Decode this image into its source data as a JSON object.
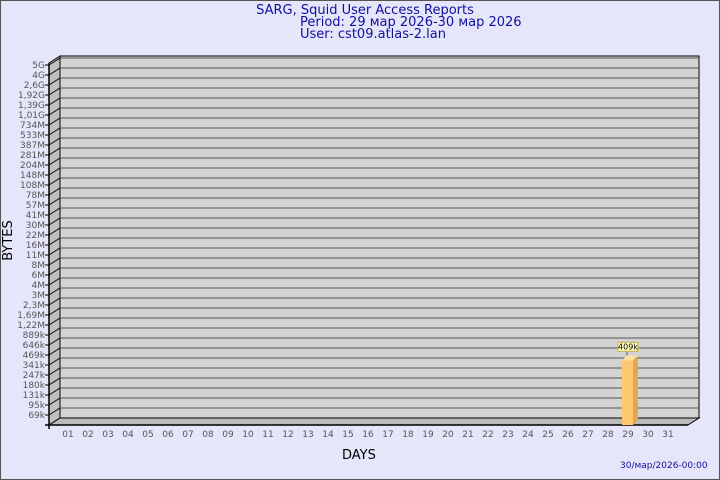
{
  "header": {
    "title": "SARG, Squid User Access Reports",
    "period": "Period: 29 мар 2026-30 мар 2026",
    "user": "User: cst09.atlas-2.lan"
  },
  "footer": {
    "timestamp": "30/мар/2026-00:00"
  },
  "chart_data": {
    "type": "bar",
    "title": "SARG, Squid User Access Reports",
    "xlabel": "DAYS",
    "ylabel": "BYTES",
    "y_scale": "log",
    "y_tick_labels": [
      "5G",
      "4G",
      "2,6G",
      "1,92G",
      "1,39G",
      "1,01G",
      "734M",
      "533M",
      "387M",
      "281M",
      "204M",
      "148M",
      "108M",
      "78M",
      "57M",
      "41M",
      "30M",
      "22M",
      "16M",
      "11M",
      "8M",
      "6M",
      "4M",
      "3M",
      "2,3M",
      "1,69M",
      "1,22M",
      "889k",
      "646k",
      "469k",
      "341k",
      "247k",
      "180k",
      "131k",
      "95k",
      "69k"
    ],
    "categories": [
      "01",
      "02",
      "03",
      "04",
      "05",
      "06",
      "07",
      "08",
      "09",
      "10",
      "11",
      "12",
      "13",
      "14",
      "15",
      "16",
      "17",
      "18",
      "19",
      "20",
      "21",
      "22",
      "23",
      "24",
      "25",
      "26",
      "27",
      "28",
      "29",
      "30",
      "31"
    ],
    "bars": [
      {
        "day": "29",
        "value": 409000,
        "label": "409k"
      }
    ],
    "grid": true,
    "colors": {
      "panel": "#d3d3d3",
      "bar": "#ffc870",
      "bar_side": "#e0a850",
      "text": "#1010a0",
      "axis_text": "#555555"
    }
  }
}
